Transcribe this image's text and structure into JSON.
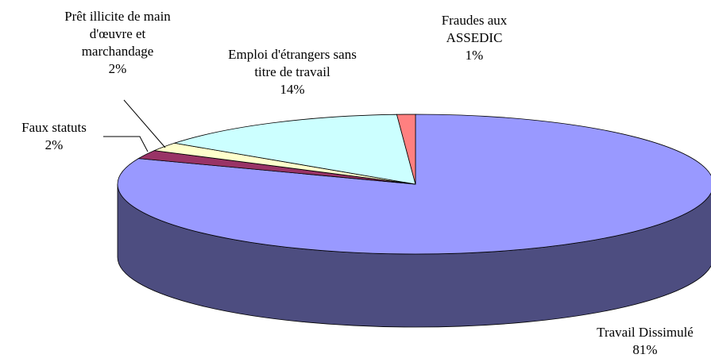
{
  "chart_data": {
    "type": "pie3d",
    "categories": [
      "Travail Dissimulé",
      "Faux statuts",
      "Prêt illicite de main d'œuvre et marchandage",
      "Emploi d'étrangers sans titre de travail",
      "Fraudes aux ASSEDIC"
    ],
    "values": [
      81,
      2,
      2,
      14,
      1
    ],
    "value_labels": [
      "81%",
      "2%",
      "2%",
      "14%",
      "1%"
    ],
    "colors": [
      "#9999ff",
      "#993366",
      "#ffffcc",
      "#ccffff",
      "#ff8080"
    ]
  }
}
